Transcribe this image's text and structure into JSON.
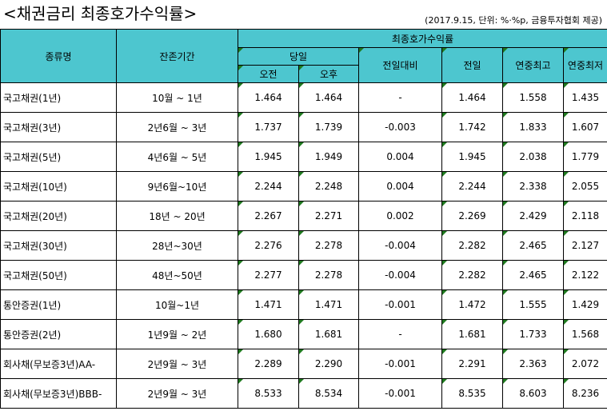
{
  "title": "<채권금리 최종호가수익률>",
  "note": "(2017.9.15, 단위: %·%p, 금융투자협회 제공)",
  "headers": {
    "type": "종류명",
    "term": "잔존기간",
    "group": "최종호가수익률",
    "today": "당일",
    "am": "오전",
    "pm": "오후",
    "change": "전일대비",
    "prev": "전일",
    "high": "연중최고",
    "low": "연중최저"
  },
  "rows": [
    {
      "name": "국고채권(1년)",
      "term": "10월 ~ 1년",
      "am": "1.464",
      "pm": "1.464",
      "change": "-",
      "prev": "1.464",
      "high": "1.558",
      "low": "1.435"
    },
    {
      "name": "국고채권(3년)",
      "term": "2년6월 ~ 3년",
      "am": "1.737",
      "pm": "1.739",
      "change": "-0.003",
      "prev": "1.742",
      "high": "1.833",
      "low": "1.607"
    },
    {
      "name": "국고채권(5년)",
      "term": "4년6월 ~ 5년",
      "am": "1.945",
      "pm": "1.949",
      "change": "0.004",
      "prev": "1.945",
      "high": "2.038",
      "low": "1.779"
    },
    {
      "name": "국고채권(10년)",
      "term": "9년6월~10년",
      "am": "2.244",
      "pm": "2.248",
      "change": "0.004",
      "prev": "2.244",
      "high": "2.338",
      "low": "2.055"
    },
    {
      "name": "국고채권(20년)",
      "term": "18년 ~ 20년",
      "am": "2.267",
      "pm": "2.271",
      "change": "0.002",
      "prev": "2.269",
      "high": "2.429",
      "low": "2.118"
    },
    {
      "name": "국고채권(30년)",
      "term": "28년~30년",
      "am": "2.276",
      "pm": "2.278",
      "change": "-0.004",
      "prev": "2.282",
      "high": "2.465",
      "low": "2.127"
    },
    {
      "name": "국고채권(50년)",
      "term": "48년~50년",
      "am": "2.277",
      "pm": "2.278",
      "change": "-0.004",
      "prev": "2.282",
      "high": "2.465",
      "low": "2.122"
    },
    {
      "name": "통안증권(1년)",
      "term": "10월~1년",
      "am": "1.471",
      "pm": "1.471",
      "change": "-0.001",
      "prev": "1.472",
      "high": "1.555",
      "low": "1.429"
    },
    {
      "name": "통안증권(2년)",
      "term": "1년9월 ~ 2년",
      "am": "1.680",
      "pm": "1.681",
      "change": "-",
      "prev": "1.681",
      "high": "1.733",
      "low": "1.568"
    },
    {
      "name": "회사채(무보증3년)AA-",
      "term": "2년9월 ~ 3년",
      "am": "2.289",
      "pm": "2.290",
      "change": "-0.001",
      "prev": "2.291",
      "high": "2.363",
      "low": "2.072"
    },
    {
      "name": "회사채(무보증3년)BBB-",
      "term": "2년9월 ~ 3년",
      "am": "8.533",
      "pm": "8.534",
      "change": "-0.001",
      "prev": "8.535",
      "high": "8.603",
      "low": "8.236"
    }
  ]
}
